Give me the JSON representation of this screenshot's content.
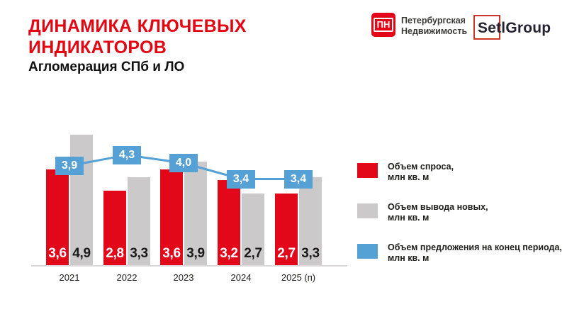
{
  "header": {
    "title_line1": "ДИНАМИКА КЛЮЧЕВЫХ",
    "title_line2": "ИНДИКАТОРОВ",
    "subtitle": "Агломерация СПб и ЛО"
  },
  "logos": {
    "pn_monogram": "ПН",
    "pn_name_line1": "Петербургская",
    "pn_name_line2": "Недвижимость",
    "setl_wordmark": "SetlGroup"
  },
  "colors": {
    "title_red": "#e30613",
    "demand_red": "#e2081a",
    "supply_gray": "#cbc9c9",
    "line_blue": "#55a0d5",
    "axis_gray": "#d9d7d7",
    "text_dark": "#1d1d1b"
  },
  "chart_data": {
    "type": "bar",
    "subtype": "grouped bars with line overlay",
    "categories": [
      "2021",
      "2022",
      "2023",
      "2024",
      "2025 (п)"
    ],
    "series": [
      {
        "name": "Объем спроса, млн кв. м",
        "type": "bar",
        "color": "#e2081a",
        "values": [
          3.6,
          2.8,
          3.6,
          3.2,
          2.7
        ],
        "value_labels": [
          "3,6",
          "2,8",
          "3,6",
          "3,2",
          "2,7"
        ]
      },
      {
        "name": "Объем вывода новых, млн кв. м",
        "type": "bar",
        "color": "#cbc9c9",
        "values": [
          4.9,
          3.3,
          3.9,
          2.7,
          3.3
        ],
        "value_labels": [
          "4,9",
          "3,3",
          "3,9",
          "2,7",
          "3,3"
        ]
      },
      {
        "name": "Объем предложения на конец периода, млн кв. м",
        "type": "line",
        "color": "#55a0d5",
        "values": [
          3.9,
          4.3,
          4.0,
          3.4,
          3.4
        ],
        "value_labels": [
          "3,9",
          "4,3",
          "4,0",
          "3,4",
          "3,4"
        ]
      }
    ],
    "xlabel": "",
    "ylabel": "",
    "ylim": [
      0,
      5.5
    ],
    "grid": false,
    "legend_position": "right",
    "value_labels_position": "inside bar bottom / boxes on line"
  },
  "legend": {
    "items": [
      {
        "swatch_color": "#e2081a",
        "line1": "Объем спроса,",
        "line2": "млн кв. м"
      },
      {
        "swatch_color": "#cbc9c9",
        "line1": "Объем вывода новых,",
        "line2": "млн кв. м"
      },
      {
        "swatch_color": "#55a0d5",
        "line1": "Объем предложения на конец периода,",
        "line2": "млн кв. м"
      }
    ]
  }
}
